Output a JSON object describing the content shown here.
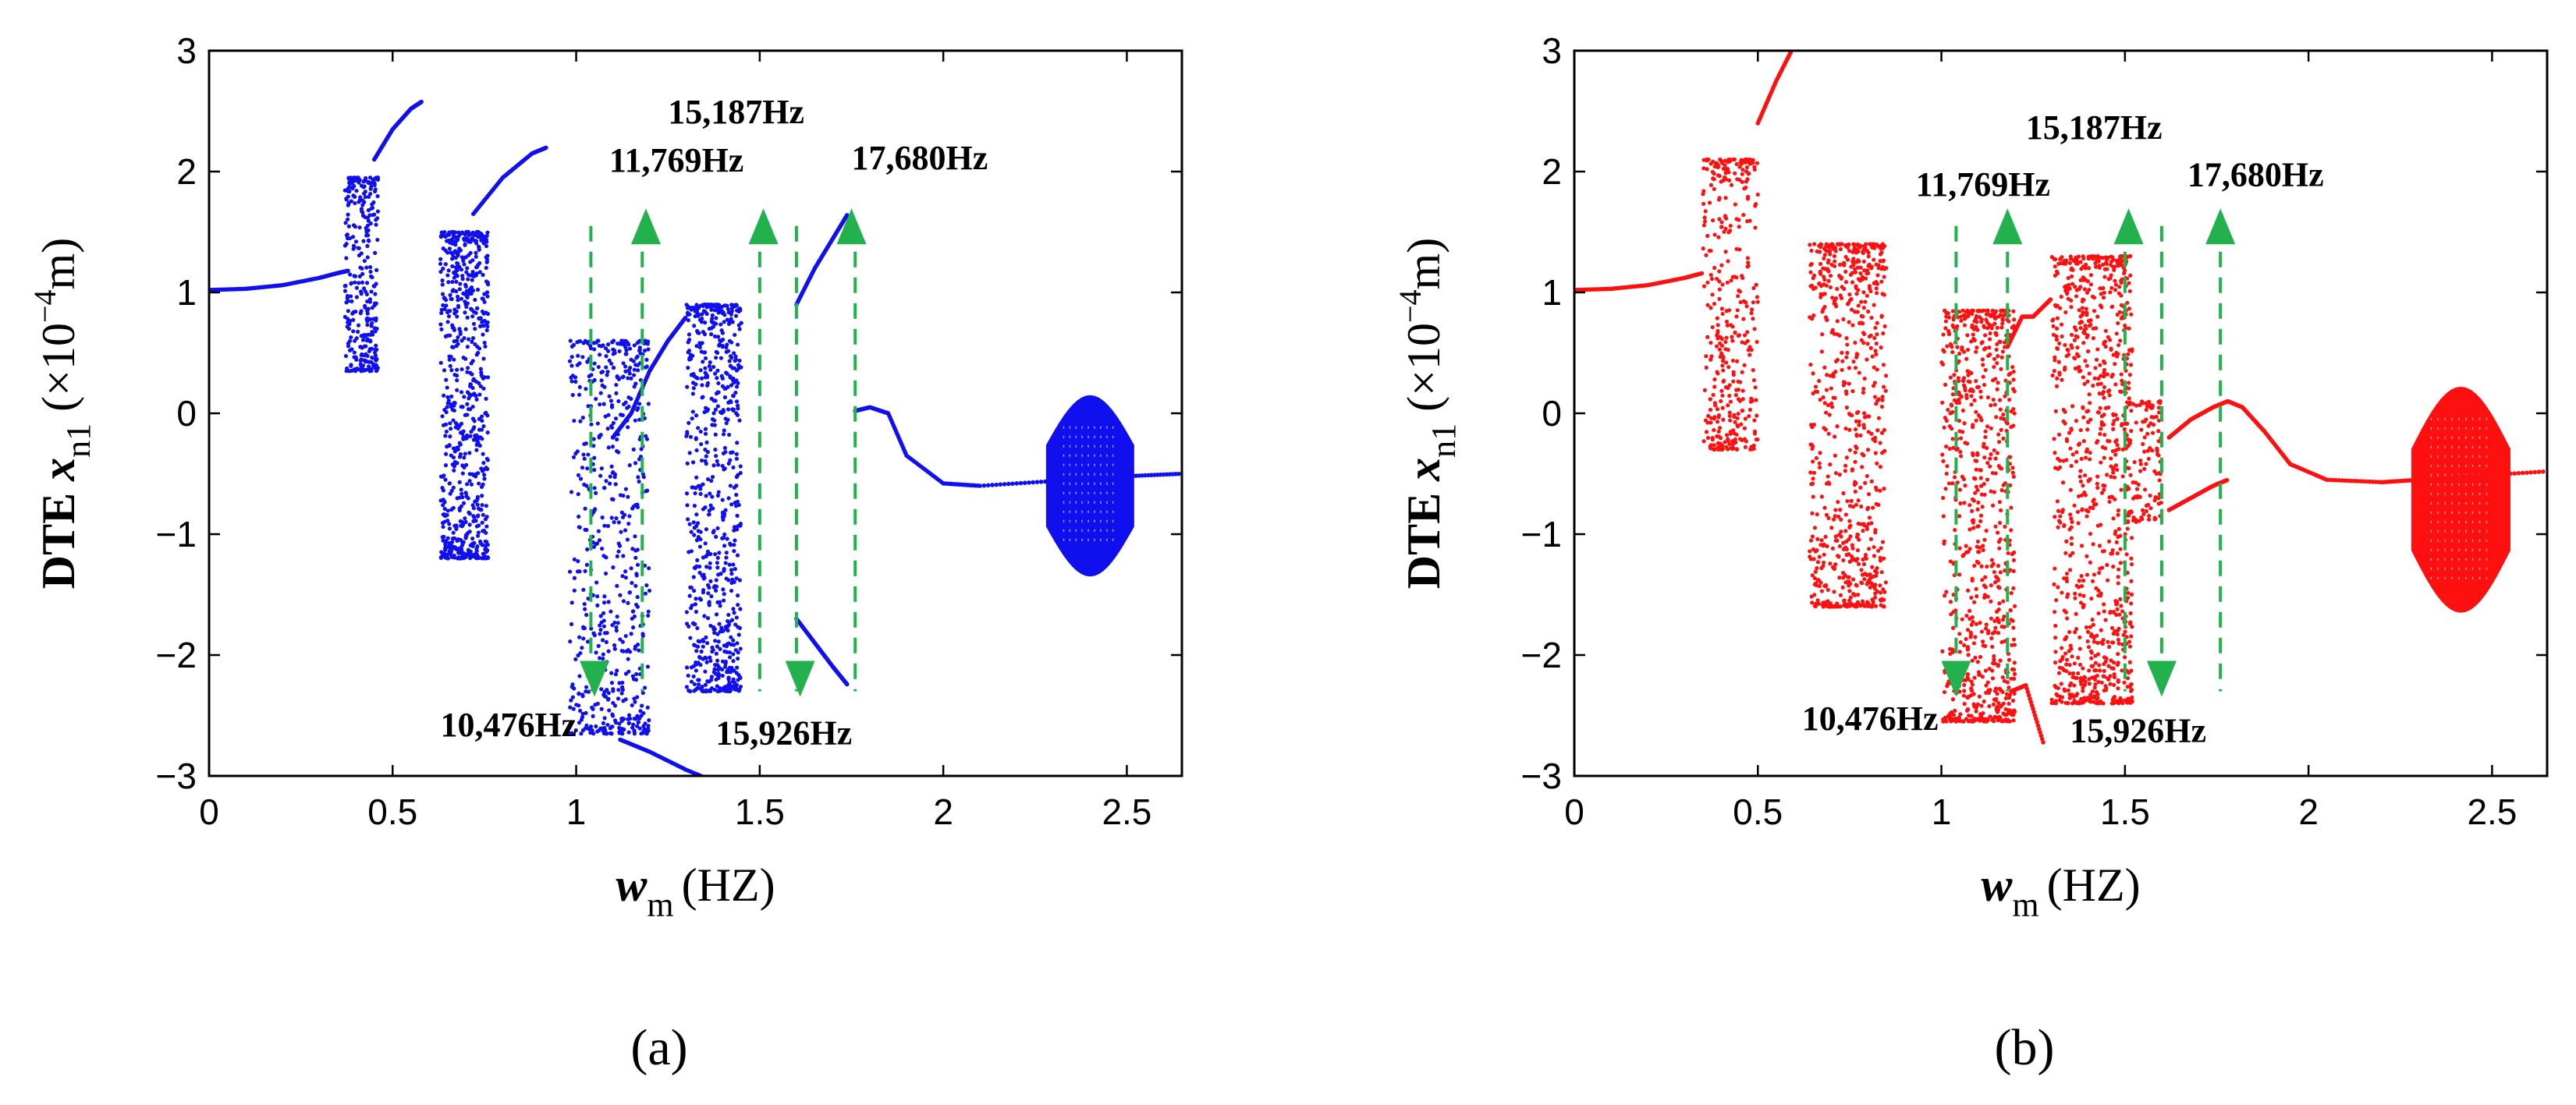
{
  "chart_data": [
    {
      "type": "scatter",
      "panel_label": "(a)",
      "series_color": "#1010ee",
      "xlabel": {
        "var": "w",
        "sub": "m",
        "unit": "(HZ)"
      },
      "ylabel": {
        "prefix": "DTE ",
        "var": "x",
        "sub": "n1",
        "unit_pre": " (×10",
        "exp": "−4",
        "unit_post": "m)"
      },
      "xlim": [
        0,
        2.65
      ],
      "ylim": [
        -3,
        3
      ],
      "xticks": [
        0,
        0.5,
        1,
        1.5,
        2,
        2.5
      ],
      "xtick_labels": [
        "0",
        "0.5",
        "1",
        "1.5",
        "2",
        "2.5"
      ],
      "yticks": [
        -3,
        -2,
        -1,
        0,
        1,
        2,
        3
      ],
      "ytick_labels": [
        "−3",
        "−2",
        "−1",
        "0",
        "1",
        "2",
        "3"
      ],
      "curves": [
        {
          "x": [
            0,
            0.1,
            0.2,
            0.3,
            0.35,
            0.38
          ],
          "y": [
            1.02,
            1.03,
            1.06,
            1.12,
            1.16,
            1.18
          ]
        },
        {
          "x": [
            0.45,
            0.5,
            0.55,
            0.58
          ],
          "y": [
            2.1,
            2.35,
            2.52,
            2.58
          ]
        },
        {
          "x": [
            0.72,
            0.8,
            0.88,
            0.92
          ],
          "y": [
            1.65,
            1.95,
            2.15,
            2.2
          ]
        },
        {
          "x": [
            1.12,
            1.2,
            1.3,
            1.42
          ],
          "y": [
            -2.7,
            -2.8,
            -2.95,
            -3.1
          ]
        },
        {
          "x": [
            1.1,
            1.15,
            1.2,
            1.25,
            1.3
          ],
          "y": [
            -0.2,
            0.0,
            0.35,
            0.6,
            0.8
          ]
        },
        {
          "x": [
            1.6,
            1.65,
            1.7,
            1.74
          ],
          "y": [
            0.9,
            1.2,
            1.45,
            1.65
          ]
        },
        {
          "x": [
            1.6,
            1.65,
            1.7,
            1.74
          ],
          "y": [
            -1.7,
            -1.9,
            -2.1,
            -2.25
          ]
        },
        {
          "x": [
            1.76,
            1.8,
            1.85,
            1.9,
            2.0,
            2.1,
            2.3,
            2.5,
            2.65
          ],
          "y": [
            0.02,
            0.05,
            0.0,
            -0.35,
            -0.58,
            -0.6,
            -0.56,
            -0.52,
            -0.5
          ]
        }
      ],
      "clouds": [
        {
          "x": [
            0.37,
            0.46
          ],
          "y": [
            0.35,
            1.95
          ],
          "n": 320
        },
        {
          "x": [
            0.63,
            0.76
          ],
          "y": [
            -1.2,
            1.5
          ],
          "n": 700
        },
        {
          "x": [
            0.98,
            1.2
          ],
          "y": [
            -2.65,
            0.6
          ],
          "n": 600
        },
        {
          "x": [
            1.3,
            1.45
          ],
          "y": [
            -2.3,
            0.9
          ],
          "n": 700
        },
        {
          "x": [
            2.28,
            2.52
          ],
          "y": [
            -1.35,
            0.15
          ],
          "n": 0,
          "dense": true
        }
      ],
      "vlines": [
        1.04,
        1.18,
        1.5,
        1.6,
        1.76
      ],
      "arrows_up": [
        1.19,
        1.51,
        1.75
      ],
      "arrows_down": [
        1.05,
        1.61
      ],
      "annotations": [
        {
          "text": "11,769Hz",
          "x": 1.09,
          "y": 2.0
        },
        {
          "text": "15,187Hz",
          "x": 1.25,
          "y": 2.4
        },
        {
          "text": "17,680Hz",
          "x": 1.75,
          "y": 2.02
        },
        {
          "text": "10,476Hz",
          "x": 0.63,
          "y": -2.67
        },
        {
          "text": "15,926Hz",
          "x": 1.38,
          "y": -2.74
        }
      ]
    },
    {
      "type": "scatter",
      "panel_label": "(b)",
      "series_color": "#ff1010",
      "xlabel": {
        "var": "w",
        "sub": "m",
        "unit": "(HZ)"
      },
      "ylabel": {
        "prefix": "DTE ",
        "var": "x",
        "sub": "n1",
        "unit_pre": " (×10",
        "exp": "−4",
        "unit_post": "m)"
      },
      "xlim": [
        0,
        2.65
      ],
      "ylim": [
        -3,
        3
      ],
      "xticks": [
        0,
        0.5,
        1,
        1.5,
        2,
        2.5
      ],
      "xtick_labels": [
        "0",
        "0.5",
        "1",
        "1.5",
        "2",
        "2.5"
      ],
      "yticks": [
        -3,
        -2,
        -1,
        0,
        1,
        2,
        3
      ],
      "ytick_labels": [
        "−3",
        "−2",
        "−1",
        "0",
        "1",
        "2",
        "3"
      ],
      "curves": [
        {
          "x": [
            0,
            0.1,
            0.2,
            0.3,
            0.35
          ],
          "y": [
            1.02,
            1.03,
            1.06,
            1.12,
            1.16
          ]
        },
        {
          "x": [
            0.5,
            0.55,
            0.6
          ],
          "y": [
            2.4,
            2.75,
            3.05
          ]
        },
        {
          "x": [
            1.18,
            1.22,
            1.25,
            1.3
          ],
          "y": [
            0.55,
            0.8,
            0.8,
            0.95
          ]
        },
        {
          "x": [
            1.19,
            1.23,
            1.28
          ],
          "y": [
            -2.3,
            -2.25,
            -2.75
          ]
        },
        {
          "x": [
            1.62,
            1.68,
            1.74,
            1.78
          ],
          "y": [
            -0.8,
            -0.7,
            -0.6,
            -0.55
          ]
        },
        {
          "x": [
            1.62,
            1.68,
            1.74,
            1.78,
            1.82,
            1.88,
            1.95,
            2.05,
            2.2,
            2.3,
            2.45,
            2.65
          ],
          "y": [
            -0.2,
            -0.05,
            0.05,
            0.1,
            0.05,
            -0.15,
            -0.42,
            -0.55,
            -0.57,
            -0.55,
            -0.52,
            -0.48
          ]
        }
      ],
      "clouds": [
        {
          "x": [
            0.35,
            0.5
          ],
          "y": [
            -0.3,
            2.1
          ],
          "n": 380
        },
        {
          "x": [
            0.64,
            0.85
          ],
          "y": [
            -1.6,
            1.4
          ],
          "n": 700
        },
        {
          "x": [
            1.0,
            1.2
          ],
          "y": [
            -2.55,
            0.85
          ],
          "n": 800
        },
        {
          "x": [
            1.3,
            1.52
          ],
          "y": [
            -2.4,
            1.3
          ],
          "n": 900
        },
        {
          "x": [
            1.5,
            1.6
          ],
          "y": [
            -0.9,
            0.1
          ],
          "n": 120
        },
        {
          "x": [
            2.28,
            2.55
          ],
          "y": [
            -1.65,
            0.22
          ],
          "n": 0,
          "dense": true
        }
      ],
      "vlines": [
        1.04,
        1.18,
        1.5,
        1.6,
        1.76
      ],
      "arrows_up": [
        1.18,
        1.51,
        1.76
      ],
      "arrows_down": [
        1.04,
        1.6
      ],
      "annotations": [
        {
          "text": "11,769Hz",
          "x": 0.93,
          "y": 1.8
        },
        {
          "text": "15,187Hz",
          "x": 1.23,
          "y": 2.27
        },
        {
          "text": "17,680Hz",
          "x": 1.67,
          "y": 1.88
        },
        {
          "text": "10,476Hz",
          "x": 0.62,
          "y": -2.62
        },
        {
          "text": "15,926Hz",
          "x": 1.35,
          "y": -2.72
        }
      ]
    }
  ]
}
